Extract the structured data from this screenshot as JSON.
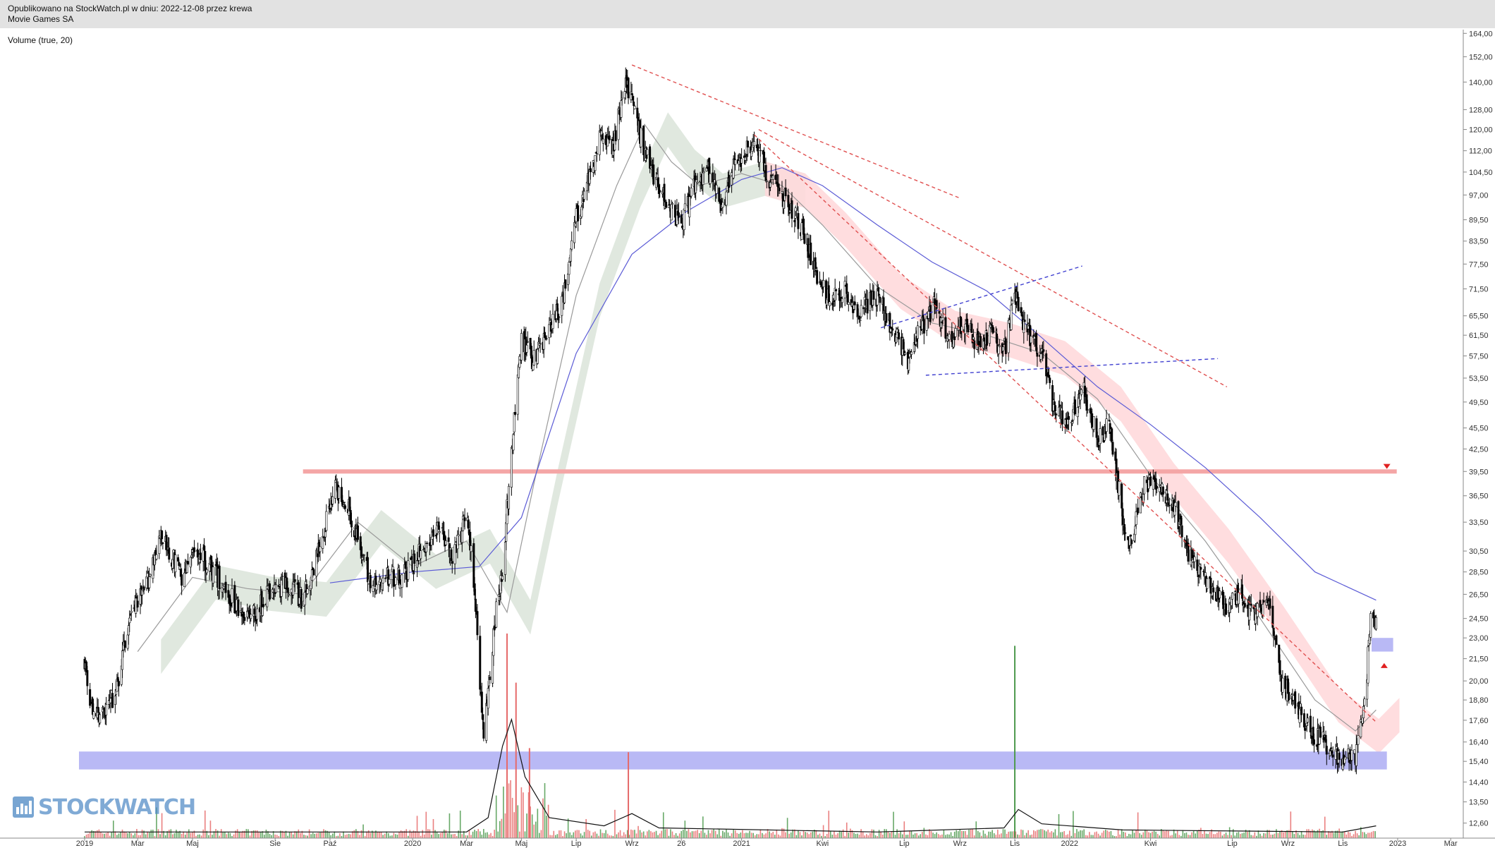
{
  "header": {
    "published": "Opublikowano na StockWatch.pl w dniu: 2022-12-08 przez krewa",
    "instrument": "Movie Games SA"
  },
  "indicator_label": "Volume (true, 20)",
  "logo_text": "STOCKWATCH",
  "colors": {
    "candle": "#000000",
    "ma_short": "#9a9a9a",
    "ma_long": "#5b5bd6",
    "cloud_bull": "#dde5db",
    "cloud_bear": "#ffd9dc",
    "resistance": "#f4a6a6",
    "support_zone": "#b9b9f5",
    "trend_red": "#e05050",
    "trend_blue": "#4040d0",
    "vol_up": "#4d9a4d",
    "vol_down": "#e66a6a"
  },
  "chart_data": {
    "type": "candlestick",
    "y_scale": "log",
    "ylim": [
      12.0,
      166.0
    ],
    "x_range": [
      "2019-01-01",
      "2023-03-15"
    ],
    "y_tick_labels": [
      "164,00",
      "152,00",
      "140,00",
      "128,00",
      "120,00",
      "112,00",
      "104,50",
      "97,00",
      "89,50",
      "83,50",
      "77,50",
      "71,50",
      "65,50",
      "61,50",
      "57,50",
      "53,50",
      "49,50",
      "45,50",
      "42,50",
      "39,50",
      "36,50",
      "33,50",
      "30,50",
      "28,50",
      "26,50",
      "24,50",
      "23,00",
      "21,50",
      "20,00",
      "18,80",
      "17,60",
      "16,40",
      "15,40",
      "14,40",
      "13,50",
      "12,60"
    ],
    "x_tick_labels": [
      {
        "label": "2019",
        "date": "2019-01-01"
      },
      {
        "label": "Mar",
        "date": "2019-03-01"
      },
      {
        "label": "Maj",
        "date": "2019-05-01"
      },
      {
        "label": "Sie",
        "date": "2019-08-01"
      },
      {
        "label": "Paź",
        "date": "2019-10-01"
      },
      {
        "label": "2020",
        "date": "2020-01-01"
      },
      {
        "label": "Mar",
        "date": "2020-03-01"
      },
      {
        "label": "Maj",
        "date": "2020-05-01"
      },
      {
        "label": "Lip",
        "date": "2020-07-01"
      },
      {
        "label": "Wrz",
        "date": "2020-09-01"
      },
      {
        "label": "26",
        "date": "2020-10-26"
      },
      {
        "label": "2021",
        "date": "2021-01-01"
      },
      {
        "label": "Kwi",
        "date": "2021-04-01"
      },
      {
        "label": "Lip",
        "date": "2021-07-01"
      },
      {
        "label": "Wrz",
        "date": "2021-09-01"
      },
      {
        "label": "Lis",
        "date": "2021-11-01"
      },
      {
        "label": "2022",
        "date": "2022-01-01"
      },
      {
        "label": "Kwi",
        "date": "2022-04-01"
      },
      {
        "label": "Lip",
        "date": "2022-07-01"
      },
      {
        "label": "Wrz",
        "date": "2022-09-01"
      },
      {
        "label": "Lis",
        "date": "2022-11-01"
      },
      {
        "label": "2023",
        "date": "2023-01-01"
      },
      {
        "label": "Mar",
        "date": "2023-03-01"
      }
    ],
    "price_path": [
      [
        "2019-01-01",
        21.5
      ],
      [
        "2019-01-08",
        18.2
      ],
      [
        "2019-01-20",
        17.8
      ],
      [
        "2019-02-05",
        19.2
      ],
      [
        "2019-02-20",
        24.5
      ],
      [
        "2019-03-10",
        27.0
      ],
      [
        "2019-03-25",
        32.0
      ],
      [
        "2019-04-05",
        30.5
      ],
      [
        "2019-04-20",
        28.0
      ],
      [
        "2019-05-05",
        30.8
      ],
      [
        "2019-05-25",
        28.5
      ],
      [
        "2019-06-15",
        26.0
      ],
      [
        "2019-07-05",
        24.5
      ],
      [
        "2019-07-25",
        26.5
      ],
      [
        "2019-08-15",
        27.5
      ],
      [
        "2019-09-01",
        26.0
      ],
      [
        "2019-09-20",
        31.0
      ],
      [
        "2019-10-05",
        37.5
      ],
      [
        "2019-10-20",
        36.0
      ],
      [
        "2019-11-05",
        30.0
      ],
      [
        "2019-11-20",
        27.0
      ],
      [
        "2019-12-05",
        28.0
      ],
      [
        "2019-12-25",
        28.5
      ],
      [
        "2020-01-15",
        31.0
      ],
      [
        "2020-02-01",
        33.0
      ],
      [
        "2020-02-15",
        29.5
      ],
      [
        "2020-03-01",
        34.5
      ],
      [
        "2020-03-10",
        27.0
      ],
      [
        "2020-03-20",
        16.5
      ],
      [
        "2020-04-01",
        24.0
      ],
      [
        "2020-04-10",
        29.0
      ],
      [
        "2020-04-20",
        42.0
      ],
      [
        "2020-05-01",
        60.0
      ],
      [
        "2020-05-15",
        57.0
      ],
      [
        "2020-06-01",
        63.0
      ],
      [
        "2020-06-15",
        68.0
      ],
      [
        "2020-07-01",
        90.0
      ],
      [
        "2020-07-15",
        102.0
      ],
      [
        "2020-07-28",
        120.0
      ],
      [
        "2020-08-10",
        112.0
      ],
      [
        "2020-08-25",
        140.0
      ],
      [
        "2020-09-05",
        125.0
      ],
      [
        "2020-09-20",
        107.0
      ],
      [
        "2020-10-10",
        95.0
      ],
      [
        "2020-10-25",
        88.0
      ],
      [
        "2020-11-10",
        100.0
      ],
      [
        "2020-11-25",
        105.0
      ],
      [
        "2020-12-10",
        92.0
      ],
      [
        "2020-12-25",
        108.0
      ],
      [
        "2021-01-15",
        115.0
      ],
      [
        "2021-02-01",
        102.0
      ],
      [
        "2021-02-20",
        95.0
      ],
      [
        "2021-03-10",
        87.0
      ],
      [
        "2021-03-25",
        75.0
      ],
      [
        "2021-04-10",
        68.0
      ],
      [
        "2021-04-25",
        72.0
      ],
      [
        "2021-05-10",
        66.0
      ],
      [
        "2021-06-01",
        70.0
      ],
      [
        "2021-06-20",
        62.0
      ],
      [
        "2021-07-05",
        57.0
      ],
      [
        "2021-07-20",
        63.0
      ],
      [
        "2021-08-05",
        68.0
      ],
      [
        "2021-08-20",
        61.0
      ],
      [
        "2021-09-05",
        64.0
      ],
      [
        "2021-09-20",
        60.0
      ],
      [
        "2021-10-05",
        62.0
      ],
      [
        "2021-10-20",
        58.0
      ],
      [
        "2021-11-01",
        70.0
      ],
      [
        "2021-11-15",
        62.0
      ],
      [
        "2021-12-01",
        58.0
      ],
      [
        "2021-12-15",
        48.0
      ],
      [
        "2022-01-01",
        46.0
      ],
      [
        "2022-01-15",
        52.0
      ],
      [
        "2022-02-01",
        44.0
      ],
      [
        "2022-02-15",
        46.0
      ],
      [
        "2022-03-01",
        34.0
      ],
      [
        "2022-03-10",
        31.0
      ],
      [
        "2022-03-25",
        38.0
      ],
      [
        "2022-04-10",
        37.5
      ],
      [
        "2022-04-25",
        36.0
      ],
      [
        "2022-05-10",
        31.0
      ],
      [
        "2022-05-25",
        28.5
      ],
      [
        "2022-06-10",
        27.0
      ],
      [
        "2022-06-25",
        25.5
      ],
      [
        "2022-07-10",
        26.5
      ],
      [
        "2022-07-25",
        24.5
      ],
      [
        "2022-08-10",
        26.0
      ],
      [
        "2022-08-25",
        20.0
      ],
      [
        "2022-09-10",
        18.5
      ],
      [
        "2022-09-25",
        17.0
      ],
      [
        "2022-10-10",
        16.5
      ],
      [
        "2022-10-25",
        15.8
      ],
      [
        "2022-11-05",
        15.5
      ],
      [
        "2022-11-15",
        15.6
      ],
      [
        "2022-11-22",
        17.5
      ],
      [
        "2022-11-28",
        20.5
      ],
      [
        "2022-12-01",
        24.0
      ],
      [
        "2022-12-05",
        24.8
      ],
      [
        "2022-12-08",
        24.2
      ]
    ],
    "moving_averages": [
      {
        "points": [
          [
            "2019-03-01",
            22.0
          ],
          [
            "2019-05-01",
            28.0
          ],
          [
            "2019-07-01",
            27.0
          ],
          [
            "2019-09-01",
            26.5
          ],
          [
            "2019-11-01",
            33.5
          ],
          [
            "2020-01-01",
            29.0
          ],
          [
            "2020-03-01",
            31.5
          ],
          [
            "2020-04-15",
            25.0
          ],
          [
            "2020-05-15",
            38.0
          ],
          [
            "2020-07-01",
            70.0
          ],
          [
            "2020-08-15",
            100.0
          ],
          [
            "2020-09-15",
            122.0
          ],
          [
            "2020-10-15",
            108.0
          ],
          [
            "2020-11-15",
            100.0
          ],
          [
            "2021-01-01",
            104.0
          ],
          [
            "2021-02-15",
            100.0
          ],
          [
            "2021-04-01",
            88.0
          ],
          [
            "2021-06-01",
            72.0
          ],
          [
            "2021-08-01",
            64.0
          ],
          [
            "2021-10-01",
            61.5
          ],
          [
            "2021-12-01",
            58.0
          ],
          [
            "2022-02-01",
            50.0
          ],
          [
            "2022-04-01",
            39.0
          ],
          [
            "2022-06-01",
            31.5
          ],
          [
            "2022-08-01",
            24.5
          ],
          [
            "2022-10-01",
            18.8
          ],
          [
            "2022-11-15",
            17.0
          ],
          [
            "2022-12-08",
            18.2
          ]
        ]
      },
      {
        "points": [
          [
            "2019-10-01",
            27.5
          ],
          [
            "2020-01-01",
            28.5
          ],
          [
            "2020-03-15",
            29.0
          ],
          [
            "2020-05-01",
            34.0
          ],
          [
            "2020-07-01",
            58.0
          ],
          [
            "2020-09-01",
            80.0
          ],
          [
            "2020-11-01",
            92.0
          ],
          [
            "2021-01-01",
            102.0
          ],
          [
            "2021-02-15",
            106.0
          ],
          [
            "2021-04-01",
            100.0
          ],
          [
            "2021-06-01",
            88.0
          ],
          [
            "2021-08-01",
            78.0
          ],
          [
            "2021-10-01",
            71.0
          ],
          [
            "2021-12-01",
            61.0
          ],
          [
            "2022-02-01",
            52.0
          ],
          [
            "2022-04-01",
            46.0
          ],
          [
            "2022-06-01",
            40.0
          ],
          [
            "2022-08-01",
            34.0
          ],
          [
            "2022-10-01",
            28.5
          ],
          [
            "2022-12-08",
            26.0
          ]
        ]
      }
    ],
    "resistance_line": {
      "price": 39.5,
      "from": "2019-09-01",
      "to": "2022-12-31"
    },
    "support_zone": {
      "low": 15.0,
      "high": 15.9,
      "from": "2019-01-01",
      "to": "2022-12-20"
    },
    "target_zone": {
      "low": 22.0,
      "high": 23.0,
      "from": "2022-12-03",
      "to": "2022-12-27"
    },
    "trend_lines": [
      {
        "style": "red-dashed",
        "from": [
          "2020-09-01",
          148.0
        ],
        "to": [
          "2021-09-01",
          96.0
        ]
      },
      {
        "style": "red-dashed",
        "from": [
          "2021-01-20",
          120.0
        ],
        "to": [
          "2022-06-25",
          52.0
        ]
      },
      {
        "style": "red-dashed",
        "from": [
          "2021-01-15",
          118.0
        ],
        "to": [
          "2022-12-08",
          17.5
        ]
      },
      {
        "style": "blue-dashed",
        "from": [
          "2021-06-05",
          63.0
        ],
        "to": [
          "2022-01-15",
          77.0
        ]
      },
      {
        "style": "blue-dashed",
        "from": [
          "2021-07-25",
          54.0
        ],
        "to": [
          "2022-06-15",
          57.0
        ]
      }
    ],
    "markers": [
      {
        "shape": "triangle-down",
        "date": "2022-12-20",
        "price": 40.2
      },
      {
        "shape": "triangle-up",
        "date": "2022-12-17",
        "price": 21.0
      }
    ],
    "volume": {
      "peaks": [
        {
          "date": "2020-04-15",
          "value": 1.0
        },
        {
          "date": "2021-11-01",
          "value": 0.94
        },
        {
          "date": "2020-04-25",
          "value": 0.76
        },
        {
          "date": "2020-08-28",
          "value": 0.42
        },
        {
          "date": "2020-05-10",
          "value": 0.44
        }
      ],
      "average_path": [
        [
          "2019-01-01",
          0.03
        ],
        [
          "2020-03-01",
          0.03
        ],
        [
          "2020-03-25",
          0.1
        ],
        [
          "2020-04-10",
          0.45
        ],
        [
          "2020-04-20",
          0.58
        ],
        [
          "2020-05-05",
          0.3
        ],
        [
          "2020-06-01",
          0.1
        ],
        [
          "2020-08-01",
          0.06
        ],
        [
          "2020-09-01",
          0.12
        ],
        [
          "2020-10-01",
          0.05
        ],
        [
          "2021-06-01",
          0.03
        ],
        [
          "2021-10-20",
          0.05
        ],
        [
          "2021-11-05",
          0.14
        ],
        [
          "2021-12-01",
          0.07
        ],
        [
          "2022-03-01",
          0.04
        ],
        [
          "2022-11-01",
          0.03
        ],
        [
          "2022-12-08",
          0.06
        ]
      ]
    }
  }
}
